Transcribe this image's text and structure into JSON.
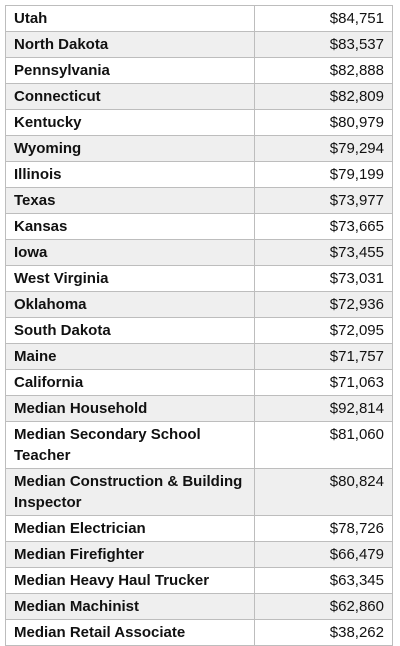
{
  "table": {
    "rows": [
      [
        "Utah",
        "$84,751"
      ],
      [
        "North Dakota",
        "$83,537"
      ],
      [
        "Pennsylvania",
        "$82,888"
      ],
      [
        "Connecticut",
        "$82,809"
      ],
      [
        "Kentucky",
        "$80,979"
      ],
      [
        "Wyoming",
        "$79,294"
      ],
      [
        "Illinois",
        "$79,199"
      ],
      [
        "Texas",
        "$73,977"
      ],
      [
        "Kansas",
        "$73,665"
      ],
      [
        "Iowa",
        "$73,455"
      ],
      [
        "West Virginia",
        "$73,031"
      ],
      [
        "Oklahoma",
        "$72,936"
      ],
      [
        "South Dakota",
        "$72,095"
      ],
      [
        "Maine",
        "$71,757"
      ],
      [
        "California",
        "$71,063"
      ],
      [
        "Median Household",
        "$92,814"
      ],
      [
        "Median Secondary School Teacher",
        "$81,060"
      ],
      [
        "Median Construction & Building Inspector",
        "$80,824"
      ],
      [
        "Median Electrician",
        "$78,726"
      ],
      [
        "Median Firefighter",
        "$66,479"
      ],
      [
        "Median Heavy Haul Trucker",
        "$63,345"
      ],
      [
        "Median Machinist",
        "$62,860"
      ],
      [
        "Median Retail Associate",
        "$38,262"
      ]
    ]
  }
}
